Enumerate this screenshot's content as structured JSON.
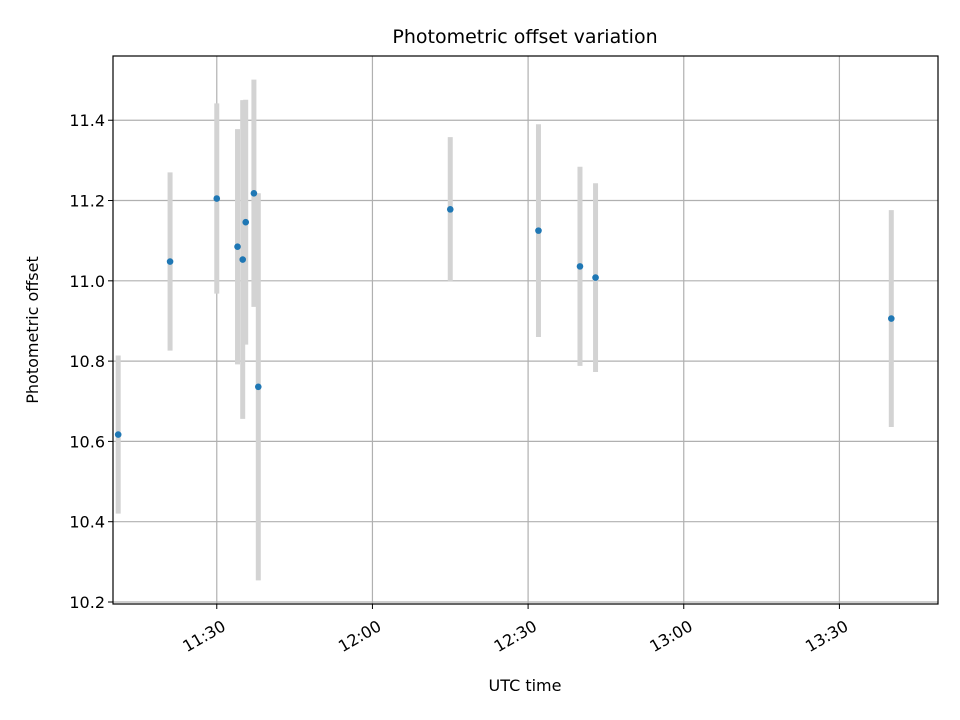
{
  "chart_data": {
    "type": "scatter",
    "title": "Photometric offset variation",
    "xlabel": "UTC time",
    "ylabel": "Photometric offset",
    "x_ticks": [
      "11:30",
      "12:00",
      "12:30",
      "13:00",
      "13:30"
    ],
    "y_ticks": [
      "10.2",
      "10.4",
      "10.6",
      "10.8",
      "11.0",
      "11.2",
      "11.4"
    ],
    "xlim": [
      "11:10",
      "13:49"
    ],
    "ylim": [
      10.195,
      11.56
    ],
    "grid": true,
    "errorbar_color": "#d3d3d3",
    "point_color": "#1f77b4",
    "series": [
      {
        "points": [
          {
            "t": "11:11",
            "y": 10.617,
            "err": 0.197
          },
          {
            "t": "11:21",
            "y": 11.048,
            "err": 0.222
          },
          {
            "t": "11:30",
            "y": 11.205,
            "err": 0.237
          },
          {
            "t": "11:34",
            "y": 11.085,
            "err": 0.293
          },
          {
            "t": "11:35",
            "y": 11.053,
            "err": 0.397
          },
          {
            "t": "11:35",
            "y": 11.146,
            "err": 0.305
          },
          {
            "t": "11:36",
            "y": 11.218,
            "err": 0.283
          },
          {
            "t": "11:38",
            "y": 10.736,
            "err": 0.482
          },
          {
            "t": "12:15",
            "y": 11.178,
            "err": 0.18
          },
          {
            "t": "12:32",
            "y": 11.125,
            "err": 0.265
          },
          {
            "t": "12:40",
            "y": 11.036,
            "err": 0.248
          },
          {
            "t": "12:43",
            "y": 11.008,
            "err": 0.235
          },
          {
            "t": "13:40",
            "y": 10.906,
            "err": 0.27
          }
        ]
      }
    ]
  }
}
